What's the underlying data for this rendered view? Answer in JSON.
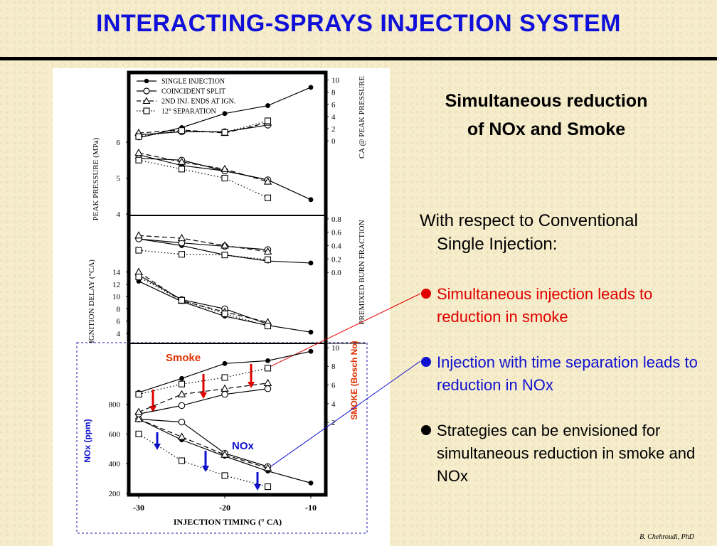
{
  "slide": {
    "title": "INTERACTING-SPRAYS INJECTION SYSTEM",
    "headline_line1": "Simultaneous reduction",
    "headline_line2": "of NOx and Smoke",
    "subhead_line1": "With respect to Conventional",
    "subhead_line2": "Single Injection:",
    "bullets": [
      {
        "text": "Simultaneous injection leads to reduction in smoke",
        "color": "#e00000"
      },
      {
        "text": "Injection with time separation leads to reduction in NOx",
        "color": "#1010d0"
      },
      {
        "text": "Strategies can be envisioned for simultaneous reduction in smoke and NOx",
        "color": "#000000"
      }
    ],
    "credit": "B. Chehroudi, PhD"
  },
  "chart_data": {
    "type": "line",
    "xlabel": "INJECTION TIMING (° CA)",
    "x_ticks": [
      -30,
      -20,
      -10
    ],
    "xlim": [
      -31,
      -9
    ],
    "legend": {
      "placement": "top-left",
      "entries": [
        "SINGLE INJECTION",
        "COINCIDENT SPLIT",
        "2ND INJ. ENDS AT IGN.",
        "12° SEPARATION"
      ]
    },
    "series_styles": [
      {
        "name": "SINGLE INJECTION",
        "marker": "filled-circle",
        "line": "solid"
      },
      {
        "name": "COINCIDENT SPLIT",
        "marker": "open-circle",
        "line": "solid"
      },
      {
        "name": "2ND INJ. ENDS AT IGN.",
        "marker": "open-triangle",
        "line": "dashed"
      },
      {
        "name": "12° SEPARATION",
        "marker": "open-square",
        "line": "dotted"
      }
    ],
    "panels": [
      {
        "id": "peak",
        "axes": [
          {
            "side": "left",
            "label": "PEAK PRESSURE (MPa)",
            "ticks": [
              4,
              5,
              6
            ],
            "range": [
              4,
              7.9
            ]
          },
          {
            "side": "right",
            "label": "CA @ PEAK PRESSURE",
            "ticks": [
              0,
              2,
              4,
              6,
              8,
              10
            ],
            "range": [
              -12,
              11
            ]
          }
        ],
        "series": [
          {
            "name": "SINGLE INJECTION",
            "axis": "left",
            "x": [
              -30,
              -25,
              -20,
              -15,
              -10
            ],
            "y": [
              5.65,
              5.35,
              5.2,
              4.95,
              4.4
            ]
          },
          {
            "name": "COINCIDENT SPLIT",
            "axis": "left",
            "x": [
              -30,
              -25,
              -20,
              -15
            ],
            "y": [
              5.55,
              5.5,
              5.2,
              4.95
            ]
          },
          {
            "name": "2ND INJ. ENDS AT IGN.",
            "axis": "left",
            "x": [
              -30,
              -25,
              -20,
              -15
            ],
            "y": [
              5.7,
              5.45,
              5.25,
              4.9
            ]
          },
          {
            "name": "12° SEPARATION",
            "axis": "left",
            "x": [
              -30,
              -25,
              -20,
              -15
            ],
            "y": [
              5.5,
              5.25,
              5.0,
              4.45
            ]
          },
          {
            "name": "SINGLE INJECTION",
            "axis": "right",
            "x": [
              -30,
              -25,
              -20,
              -15,
              -10
            ],
            "y": [
              0.5,
              2.2,
              4.5,
              5.8,
              8.8
            ]
          },
          {
            "name": "COINCIDENT SPLIT",
            "axis": "right",
            "x": [
              -30,
              -25,
              -20,
              -15
            ],
            "y": [
              1.0,
              1.5,
              1.5,
              2.6
            ]
          },
          {
            "name": "2ND INJ. ENDS AT IGN.",
            "axis": "right",
            "x": [
              -30,
              -25,
              -20,
              -15
            ],
            "y": [
              1.3,
              1.8,
              1.3,
              3.0
            ]
          },
          {
            "name": "12° SEPARATION",
            "axis": "right",
            "x": [
              -30,
              -25,
              -20,
              -15
            ],
            "y": [
              0.7,
              1.7,
              1.4,
              3.3
            ]
          }
        ]
      },
      {
        "id": "ignition",
        "axes": [
          {
            "side": "left",
            "label": "IGNITION DELAY (°CA)",
            "ticks": [
              4,
              6,
              8,
              10,
              12,
              14
            ],
            "range": [
              2.6,
              23
            ]
          },
          {
            "side": "right",
            "label": "PREMIXED BURN FRACTION",
            "ticks": [
              0.0,
              0.2,
              0.4,
              0.6,
              0.8
            ],
            "range": [
              -1.04,
              0.83
            ]
          }
        ],
        "series": [
          {
            "name": "SINGLE INJECTION",
            "axis": "left",
            "x": [
              -30,
              -25,
              -20,
              -15,
              -10
            ],
            "y": [
              12.5,
              9.2,
              6.8,
              5.3,
              4.2
            ]
          },
          {
            "name": "COINCIDENT SPLIT",
            "axis": "left",
            "x": [
              -30,
              -25,
              -20,
              -15
            ],
            "y": [
              13.5,
              9.5,
              8.0,
              5.5
            ]
          },
          {
            "name": "2ND INJ. ENDS AT IGN.",
            "axis": "left",
            "x": [
              -30,
              -25,
              -20,
              -15
            ],
            "y": [
              14.0,
              9.3,
              7.5,
              5.8
            ]
          },
          {
            "name": "12° SEPARATION",
            "axis": "left",
            "x": [
              -30,
              -25,
              -20,
              -15
            ],
            "y": [
              13.2,
              9.4,
              7.2,
              5.2
            ]
          },
          {
            "name": "SINGLE INJECTION",
            "axis": "right",
            "x": [
              -30,
              -25,
              -20,
              -15,
              -10
            ],
            "y": [
              0.5,
              0.4,
              0.26,
              0.17,
              0.14
            ]
          },
          {
            "name": "COINCIDENT SPLIT",
            "axis": "right",
            "x": [
              -30,
              -25,
              -20,
              -15
            ],
            "y": [
              0.5,
              0.44,
              0.39,
              0.34
            ]
          },
          {
            "name": "2ND INJ. ENDS AT IGN.",
            "axis": "right",
            "x": [
              -30,
              -25,
              -20,
              -15
            ],
            "y": [
              0.55,
              0.51,
              0.4,
              0.31
            ]
          },
          {
            "name": "12° SEPARATION",
            "axis": "right",
            "x": [
              -30,
              -25,
              -20,
              -15
            ],
            "y": [
              0.33,
              0.27,
              0.26,
              0.19
            ]
          }
        ]
      },
      {
        "id": "emissions",
        "axes": [
          {
            "side": "left",
            "label": "NOx (ppm)",
            "ticks": [
              200,
              400,
              600,
              800
            ],
            "range": [
              200,
              1200
            ]
          },
          {
            "side": "right",
            "label": "SMOKE (Bosch No)",
            "ticks": [
              2,
              4,
              6,
              8,
              10
            ],
            "range": [
              -5.6,
              10.3
            ]
          }
        ],
        "annotations": [
          "Smoke",
          "NOx"
        ],
        "series": [
          {
            "name": "SINGLE INJECTION",
            "axis": "left",
            "x": [
              -30,
              -25,
              -20,
              -15,
              -10
            ],
            "y": [
              700,
              560,
              450,
              350,
              270
            ]
          },
          {
            "name": "COINCIDENT SPLIT",
            "axis": "left",
            "x": [
              -30,
              -25,
              -20,
              -15
            ],
            "y": [
              700,
              680,
              470,
              380
            ]
          },
          {
            "name": "2ND INJ. ENDS AT IGN.",
            "axis": "left",
            "x": [
              -30,
              -25,
              -20,
              -15
            ],
            "y": [
              700,
              580,
              460,
              370
            ]
          },
          {
            "name": "12° SEPARATION",
            "axis": "left",
            "x": [
              -30,
              -25,
              -20,
              -15
            ],
            "y": [
              600,
              420,
              320,
              245
            ]
          },
          {
            "name": "SINGLE INJECTION",
            "axis": "right",
            "x": [
              -30,
              -25,
              -20,
              -15,
              -10
            ],
            "y": [
              5.2,
              6.7,
              8.3,
              8.6,
              9.6
            ]
          },
          {
            "name": "COINCIDENT SPLIT",
            "axis": "right",
            "x": [
              -30,
              -25,
              -20,
              -15
            ],
            "y": [
              2.9,
              3.8,
              5.0,
              5.6
            ]
          },
          {
            "name": "2ND INJ. ENDS AT IGN.",
            "axis": "right",
            "x": [
              -30,
              -25,
              -20,
              -15
            ],
            "y": [
              3.1,
              5.0,
              5.6,
              6.2
            ]
          },
          {
            "name": "12° SEPARATION",
            "axis": "right",
            "x": [
              -30,
              -25,
              -20,
              -15
            ],
            "y": [
              5.0,
              6.1,
              6.8,
              7.8
            ]
          }
        ]
      }
    ]
  }
}
